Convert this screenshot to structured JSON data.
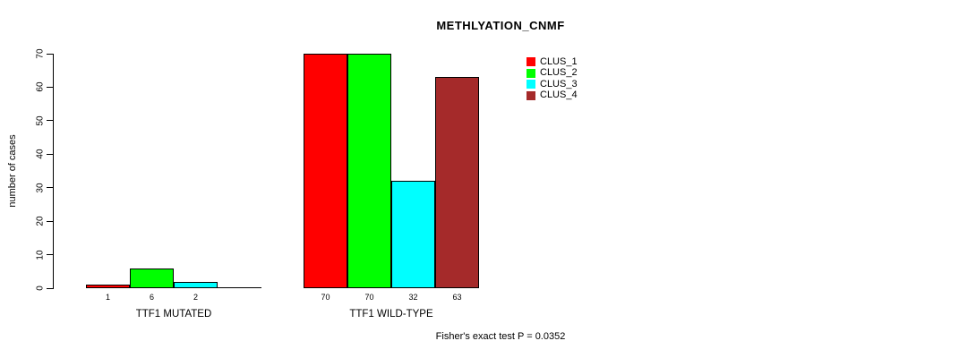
{
  "chart_data": {
    "type": "bar",
    "title": "METHLYATION_CNMF",
    "ylabel": "number of cases",
    "ylim": [
      0,
      70
    ],
    "yticks": [
      0,
      10,
      20,
      30,
      40,
      50,
      60,
      70
    ],
    "grid": false,
    "legend_position": "top-right",
    "groups": [
      {
        "label": "TTF1 MUTATED",
        "values": [
          1,
          6,
          2,
          0
        ],
        "bar_labels": [
          "1",
          "6",
          "2",
          ""
        ]
      },
      {
        "label": "TTF1 WILD-TYPE",
        "values": [
          70,
          70,
          32,
          63
        ],
        "bar_labels": [
          "70",
          "70",
          "32",
          "63"
        ]
      }
    ],
    "series": [
      {
        "name": "CLUS_1",
        "color": "#FF0000"
      },
      {
        "name": "CLUS_2",
        "color": "#00FF00"
      },
      {
        "name": "CLUS_3",
        "color": "#00FFFF"
      },
      {
        "name": "CLUS_4",
        "color": "#A52A2A"
      }
    ],
    "annotation": "Fisher's exact test P = 0.0352"
  }
}
